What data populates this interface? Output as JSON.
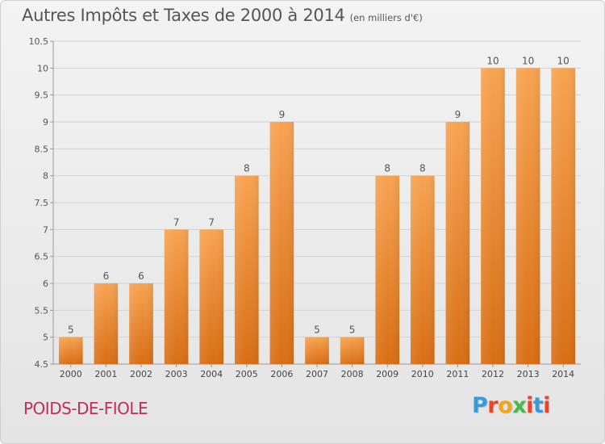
{
  "title": {
    "main": "Autres Impôts et Taxes de 2000 à 2014",
    "unit": "(en milliers d'€)"
  },
  "commune": "POIDS-DE-FIOLE",
  "brand": {
    "letters": [
      "P",
      "r",
      "o",
      "x",
      "i",
      "t",
      "i"
    ],
    "colors": [
      "#3a9ad9",
      "#e8452c",
      "#f2a51a",
      "#4ab84a",
      "#e8452c",
      "#3a9ad9",
      "#e8452c"
    ]
  },
  "chart_data": {
    "type": "bar",
    "categories": [
      "2000",
      "2001",
      "2002",
      "2003",
      "2004",
      "2005",
      "2006",
      "2007",
      "2008",
      "2009",
      "2010",
      "2011",
      "2012",
      "2013",
      "2014"
    ],
    "values": [
      5,
      6,
      6,
      7,
      7,
      8,
      9,
      5,
      5,
      8,
      8,
      9,
      10,
      10,
      10
    ],
    "ylim": [
      4.5,
      10.5
    ],
    "yticks": [
      "4.5",
      "5",
      "5.5",
      "6",
      "6.5",
      "7",
      "7.5",
      "8",
      "8.5",
      "9",
      "9.5",
      "10",
      "10.5"
    ],
    "grid": true,
    "bar_color": "#f08a2e"
  }
}
